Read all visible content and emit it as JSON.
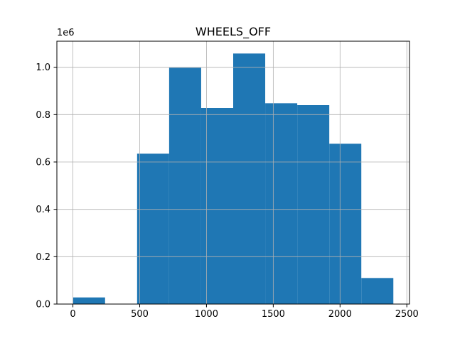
{
  "chart_data": {
    "type": "bar",
    "title": "WHEELS_OFF",
    "xlabel": "",
    "ylabel": "",
    "y_offset_label": "1e6",
    "y_scale": 1000000,
    "xlim": [
      -120,
      2520
    ],
    "ylim": [
      0,
      1110000
    ],
    "xticks": [
      0,
      500,
      1000,
      1500,
      2000,
      2500
    ],
    "yticks": [
      0.0,
      0.2,
      0.4,
      0.6,
      0.8,
      1.0
    ],
    "xtick_labels": [
      "0",
      "500",
      "1000",
      "1500",
      "2000",
      "2500"
    ],
    "ytick_labels": [
      "0.0",
      "0.2",
      "0.4",
      "0.6",
      "0.8",
      "1.0"
    ],
    "grid": true,
    "bar_color": "#1f77b4",
    "bins": [
      {
        "start": 1,
        "end": 240.8,
        "value": 28000
      },
      {
        "start": 240.8,
        "end": 480.6,
        "value": 0
      },
      {
        "start": 480.6,
        "end": 720.4,
        "value": 635000
      },
      {
        "start": 720.4,
        "end": 960.2,
        "value": 998000
      },
      {
        "start": 960.2,
        "end": 1200,
        "value": 828000
      },
      {
        "start": 1200,
        "end": 1439.8,
        "value": 1058000
      },
      {
        "start": 1439.8,
        "end": 1679.6,
        "value": 848000
      },
      {
        "start": 1679.6,
        "end": 1919.4,
        "value": 840000
      },
      {
        "start": 1919.4,
        "end": 2159.2,
        "value": 677000
      },
      {
        "start": 2159.2,
        "end": 2399,
        "value": 110000
      }
    ]
  }
}
